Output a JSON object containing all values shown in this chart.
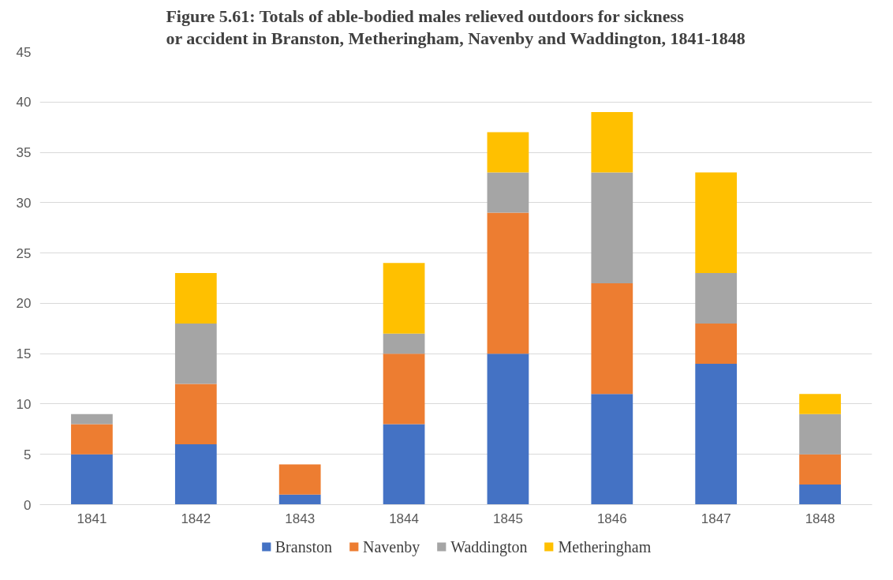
{
  "chart_data": {
    "type": "bar",
    "stacked": true,
    "title": "Figure 5.61: Totals of able-bodied males relieved outdoors for sickness or accident in Branston, Metheringham, Navenby and Waddington, 1841-1848",
    "categories": [
      "1841",
      "1842",
      "1843",
      "1844",
      "1845",
      "1846",
      "1847",
      "1848"
    ],
    "series": [
      {
        "name": "Branston",
        "color": "#4472c4",
        "values": [
          5,
          6,
          1,
          8,
          15,
          11,
          14,
          2
        ]
      },
      {
        "name": "Navenby",
        "color": "#ed7d31",
        "values": [
          3,
          6,
          3,
          7,
          14,
          11,
          4,
          3
        ]
      },
      {
        "name": "Waddington",
        "color": "#a5a5a5",
        "values": [
          1,
          6,
          0,
          2,
          4,
          11,
          5,
          4
        ]
      },
      {
        "name": "Metheringham",
        "color": "#ffc000",
        "values": [
          0,
          5,
          0,
          7,
          4,
          6,
          10,
          2
        ]
      }
    ],
    "ylim": [
      0,
      45
    ],
    "yticks": [
      0,
      5,
      10,
      15,
      20,
      25,
      30,
      35,
      40,
      45
    ],
    "grid": "y",
    "legend": "bottom"
  }
}
